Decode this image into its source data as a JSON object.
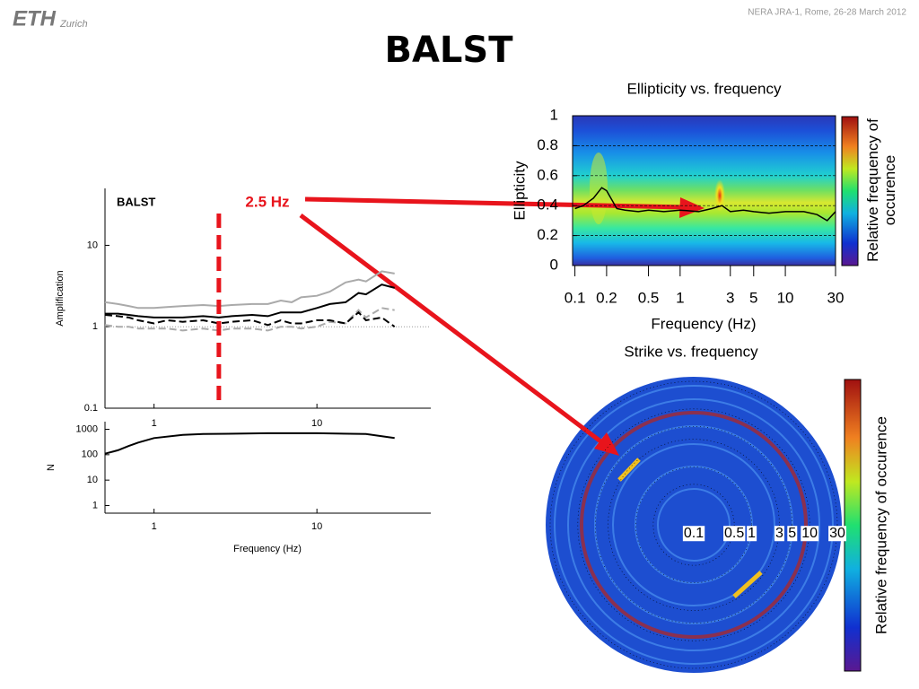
{
  "header": {
    "logo": "ETH",
    "logo_sub": "Zurich",
    "meeting": "NERA JRA-1, Rome, 26-28 March 2012",
    "title": "BALST"
  },
  "chart_data": [
    {
      "type": "line",
      "title": "BALST",
      "ylabel": "Amplification",
      "xscale": "log",
      "yscale": "log",
      "xlim": [
        0.5,
        50
      ],
      "ylim": [
        0.1,
        50
      ],
      "xticks": [
        1,
        10
      ],
      "yticks": [
        0.1,
        1,
        10
      ],
      "hline": 1,
      "marker": {
        "x": 2.5,
        "label": "2.5 Hz",
        "color": "#e8141c"
      },
      "x": [
        0.5,
        0.6,
        0.7,
        0.8,
        1,
        1.2,
        1.5,
        2,
        2.5,
        3,
        4,
        5,
        6,
        7,
        8,
        10,
        12,
        15,
        18,
        20,
        25,
        30
      ],
      "series": [
        {
          "color": "#aaaaaa",
          "dash": "solid",
          "values": [
            2.0,
            1.9,
            1.8,
            1.7,
            1.7,
            1.75,
            1.8,
            1.85,
            1.8,
            1.85,
            1.9,
            1.9,
            2.1,
            2.0,
            2.3,
            2.4,
            2.7,
            3.5,
            3.8,
            3.6,
            4.8,
            4.5
          ]
        },
        {
          "color": "#aaaaaa",
          "dash": "dashed",
          "values": [
            1.05,
            1.0,
            1.0,
            0.95,
            0.95,
            0.95,
            0.9,
            0.95,
            0.9,
            0.95,
            0.95,
            0.9,
            1.0,
            1.0,
            0.95,
            1.0,
            1.15,
            1.1,
            1.6,
            1.3,
            1.7,
            1.6
          ]
        },
        {
          "color": "#000000",
          "dash": "dashed",
          "values": [
            1.4,
            1.35,
            1.3,
            1.2,
            1.1,
            1.2,
            1.15,
            1.2,
            1.1,
            1.15,
            1.2,
            1.05,
            1.2,
            1.1,
            1.1,
            1.2,
            1.2,
            1.1,
            1.5,
            1.2,
            1.3,
            1.0
          ]
        },
        {
          "color": "#000000",
          "dash": "solid",
          "values": [
            1.45,
            1.45,
            1.4,
            1.35,
            1.3,
            1.3,
            1.3,
            1.35,
            1.3,
            1.35,
            1.4,
            1.35,
            1.5,
            1.5,
            1.5,
            1.7,
            1.9,
            2.0,
            2.6,
            2.5,
            3.3,
            3.0
          ]
        }
      ]
    },
    {
      "type": "line",
      "ylabel": "N",
      "xlabel": "Frequency (Hz)",
      "xscale": "log",
      "yscale": "log",
      "xlim": [
        0.5,
        50
      ],
      "ylim": [
        0.5,
        2000
      ],
      "xticks": [
        1,
        10
      ],
      "yticks": [
        1,
        10,
        100,
        1000
      ],
      "x": [
        0.5,
        0.6,
        0.7,
        0.8,
        1,
        1.5,
        2,
        5,
        10,
        20,
        30
      ],
      "series": [
        {
          "color": "#000000",
          "dash": "solid",
          "values": [
            110,
            150,
            220,
            300,
            450,
            600,
            650,
            700,
            700,
            650,
            450
          ]
        }
      ]
    },
    {
      "type": "heatmap",
      "title": "Ellipticity vs. frequency",
      "xlabel": "Frequency (Hz)",
      "ylabel": "Ellipticity",
      "colorbar_label": "Relative frequency of occurence",
      "xscale": "log",
      "xlim": [
        0.095,
        30
      ],
      "ylim": [
        0,
        1
      ],
      "xticks": [
        0.1,
        0.2,
        0.5,
        1,
        3,
        5,
        10,
        30
      ],
      "yticks": [
        0,
        0.2,
        0.4,
        0.6,
        0.8,
        1
      ],
      "grid": true,
      "x": [
        0.1,
        0.12,
        0.15,
        0.18,
        0.2,
        0.25,
        0.3,
        0.4,
        0.5,
        0.7,
        1,
        1.5,
        2,
        2.5,
        3,
        4,
        5,
        7,
        10,
        15,
        20,
        25,
        30
      ],
      "series": [
        {
          "color": "#000000",
          "values": [
            0.38,
            0.4,
            0.45,
            0.52,
            0.5,
            0.38,
            0.37,
            0.36,
            0.37,
            0.36,
            0.37,
            0.36,
            0.38,
            0.4,
            0.36,
            0.37,
            0.36,
            0.35,
            0.36,
            0.36,
            0.34,
            0.3,
            0.36
          ]
        }
      ]
    },
    {
      "type": "polar",
      "title": "Strike vs. frequency",
      "colorbar_label": "Relative frequency of occurence",
      "rscale": "log",
      "rlim": [
        0.1,
        30
      ],
      "rticks": [
        0.1,
        0.5,
        1,
        3,
        5,
        10,
        30
      ]
    }
  ]
}
